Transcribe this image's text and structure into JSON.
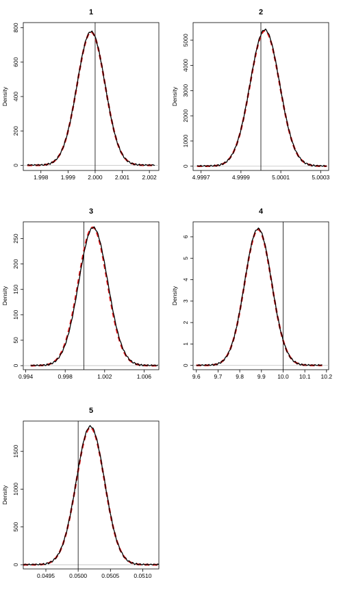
{
  "colors": {
    "fitted": "#e41a1c",
    "empirical": "#000000",
    "reference": "#000000",
    "frame": "#000000"
  },
  "chart_data": [
    {
      "type": "line",
      "title": "1",
      "ylabel": "Density",
      "xlim": [
        1.99735,
        2.00235
      ],
      "ylim": [
        -30,
        830
      ],
      "xticks": [
        1.998,
        1.999,
        2.0,
        2.001,
        2.002
      ],
      "xtick_labels": [
        "1.998",
        "1.999",
        "2.000",
        "2.001",
        "2.002"
      ],
      "yticks": [
        0,
        200,
        400,
        600,
        800
      ],
      "ytick_labels": [
        "0",
        "200",
        "400",
        "600",
        "800"
      ],
      "reference_x": 2.0,
      "fitted": {
        "mean": 1.99985,
        "sd": 0.000515,
        "peak": 775,
        "x_range": [
          1.9975,
          2.0022
        ]
      },
      "empirical": {
        "mean": 1.99985,
        "sd": 0.000515,
        "peak": 778,
        "x_range": [
          1.9975,
          2.0022
        ]
      },
      "series": [
        {
          "style": "dashed",
          "color": "red"
        },
        {
          "style": "solid",
          "color": "black"
        }
      ]
    },
    {
      "type": "line",
      "title": "2",
      "ylabel": "Density",
      "xlim": [
        4.99966,
        5.00034
      ],
      "ylim": [
        -170,
        5700
      ],
      "xticks": [
        4.9997,
        4.9999,
        5.0001,
        5.0003
      ],
      "xtick_labels": [
        "4.9997",
        "4.9999",
        "5.0001",
        "5.0003"
      ],
      "yticks": [
        0,
        1000,
        2000,
        3000,
        4000,
        5000
      ],
      "ytick_labels": [
        "0",
        "1000",
        "2000",
        "3000",
        "4000",
        "5000"
      ],
      "reference_x": 5.0,
      "fitted": {
        "mean": 5.00002,
        "sd": 7.4e-05,
        "peak": 5380,
        "x_range": [
          4.99968,
          5.00033
        ]
      },
      "empirical": {
        "mean": 5.00002,
        "sd": 7.4e-05,
        "peak": 5420,
        "x_range": [
          4.99968,
          5.00033
        ]
      },
      "series": [
        {
          "style": "dashed",
          "color": "red"
        },
        {
          "style": "solid",
          "color": "black"
        }
      ]
    },
    {
      "type": "line",
      "title": "3",
      "ylabel": "Density",
      "xlim": [
        0.99375,
        1.0075
      ],
      "ylim": [
        -8,
        283
      ],
      "xticks": [
        0.994,
        0.998,
        1.002,
        1.006
      ],
      "xtick_labels": [
        "0.994",
        "0.998",
        "1.002",
        "1.006"
      ],
      "yticks": [
        0,
        50,
        100,
        150,
        200,
        250
      ],
      "ytick_labels": [
        "0",
        "50",
        "100",
        "150",
        "200",
        "250"
      ],
      "reference_x": 0.9999,
      "fitted": {
        "mean": 1.0008,
        "sd": 0.00147,
        "peak": 272,
        "x_range": [
          0.9945,
          1.0074
        ]
      },
      "empirical": {
        "mean": 1.00085,
        "sd": 0.00147,
        "peak": 272,
        "x_range": [
          0.9945,
          1.0074
        ]
      },
      "series": [
        {
          "style": "dashed",
          "color": "red"
        },
        {
          "style": "solid",
          "color": "black"
        }
      ]
    },
    {
      "type": "line",
      "title": "4",
      "ylabel": "Density",
      "xlim": [
        9.585,
        10.21
      ],
      "ylim": [
        -0.2,
        6.7
      ],
      "xticks": [
        9.6,
        9.7,
        9.8,
        9.9,
        10.0,
        10.1,
        10.2
      ],
      "xtick_labels": [
        "9.6",
        "9.7",
        "9.8",
        "9.9",
        "10.0",
        "10.1",
        "10.2"
      ],
      "yticks": [
        0,
        1,
        2,
        3,
        4,
        5,
        6
      ],
      "ytick_labels": [
        "0",
        "1",
        "2",
        "3",
        "4",
        "5",
        "6"
      ],
      "reference_x": 10.0,
      "fitted": {
        "mean": 9.885,
        "sd": 0.0625,
        "peak": 6.34,
        "x_range": [
          9.6,
          10.18
        ]
      },
      "empirical": {
        "mean": 9.885,
        "sd": 0.0625,
        "peak": 6.38,
        "x_range": [
          9.6,
          10.18
        ]
      },
      "series": [
        {
          "style": "dashed",
          "color": "red"
        },
        {
          "style": "solid",
          "color": "black"
        }
      ]
    },
    {
      "type": "line",
      "title": "5",
      "ylabel": "Density",
      "xlim": [
        0.04915,
        0.05125
      ],
      "ylim": [
        -55,
        1900
      ],
      "xticks": [
        0.0495,
        0.05,
        0.0505,
        0.051
      ],
      "xtick_labels": [
        "0.0495",
        "0.0500",
        "0.0505",
        "0.0510"
      ],
      "yticks": [
        0,
        500,
        1000,
        1500
      ],
      "ytick_labels": [
        "0",
        "500",
        "1000",
        "1500"
      ],
      "reference_x": 0.05,
      "fitted": {
        "mean": 0.05019,
        "sd": 0.000219,
        "peak": 1815,
        "x_range": [
          0.04915,
          0.05125
        ]
      },
      "empirical": {
        "mean": 0.05019,
        "sd": 0.000219,
        "peak": 1830,
        "x_range": [
          0.04915,
          0.05125
        ]
      },
      "series": [
        {
          "style": "dashed",
          "color": "red"
        },
        {
          "style": "solid",
          "color": "black"
        }
      ]
    }
  ]
}
